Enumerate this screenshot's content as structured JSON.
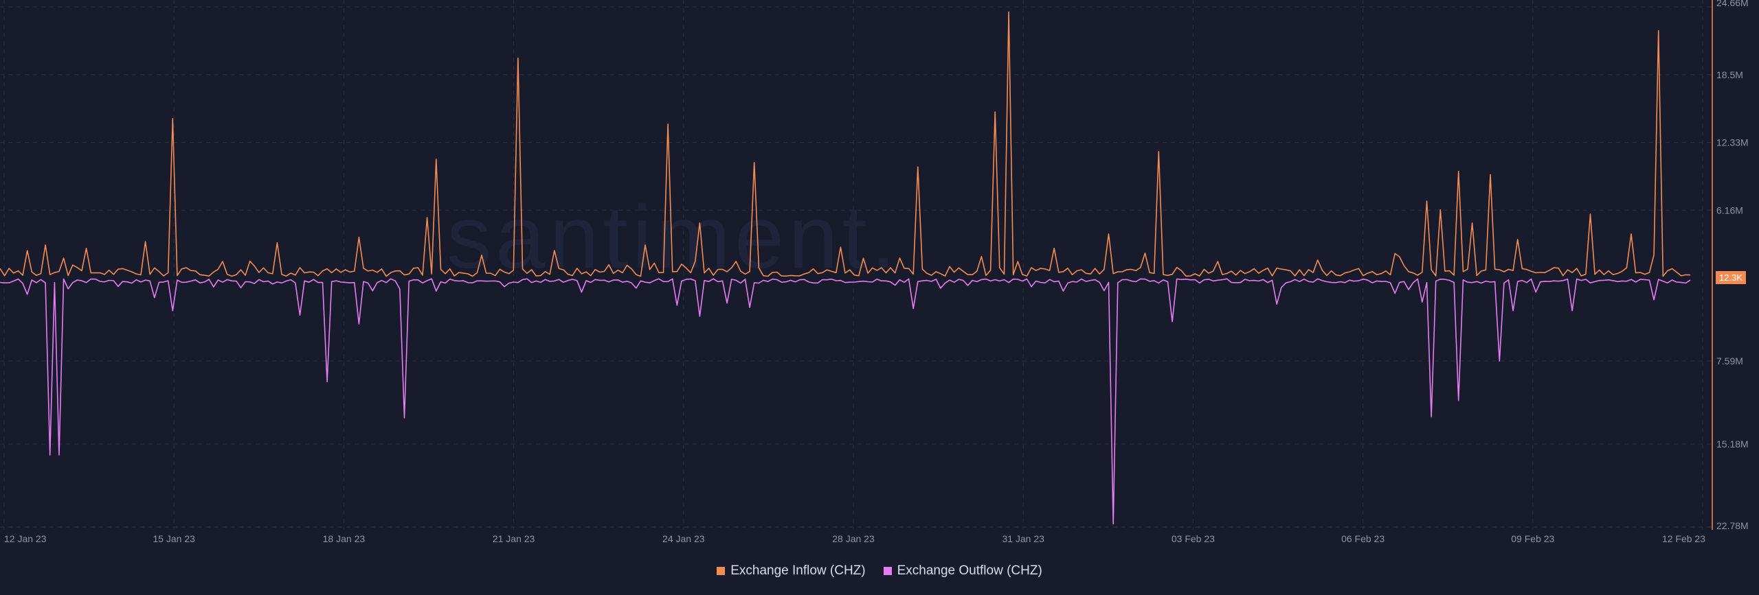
{
  "watermark": "santiment.",
  "current_value_badge": "12.3K",
  "colors": {
    "inflow": "#f48c52",
    "outflow": "#e67cf2",
    "background": "#181b2c",
    "badge": "#f48c52"
  },
  "legend": [
    {
      "label": "Exchange Inflow (CHZ)",
      "color": "#f48c52"
    },
    {
      "label": "Exchange Outflow (CHZ)",
      "color": "#e67cf2"
    }
  ],
  "chart_data": {
    "type": "line",
    "title": "",
    "xlabel": "",
    "ylabel": "",
    "x_ticks": [
      "12 Jan 23",
      "15 Jan 23",
      "18 Jan 23",
      "21 Jan 23",
      "24 Jan 23",
      "28 Jan 23",
      "31 Jan 23",
      "03 Feb 23",
      "06 Feb 23",
      "09 Feb 23",
      "12 Feb 23"
    ],
    "y_ticks_upper": [
      "24.66M",
      "18.5M",
      "12.33M",
      "6.16M"
    ],
    "y_ticks_lower": [
      "7.59M",
      "15.18M",
      "22.78M"
    ],
    "x_range": [
      "2023-01-12",
      "2023-02-12"
    ],
    "inflow_range": [
      0,
      24660000
    ],
    "outflow_range": [
      0,
      22780000
    ],
    "grid": true,
    "legend_position": "bottom-center",
    "series": [
      {
        "name": "Exchange Inflow (CHZ)",
        "color": "#f48c52",
        "baseline": 500000,
        "spikes": [
          {
            "t": "2023-01-12T12:00",
            "v": 2500000
          },
          {
            "t": "2023-01-12T20:00",
            "v": 3000000
          },
          {
            "t": "2023-01-13T04:00",
            "v": 1800000
          },
          {
            "t": "2023-01-13T14:00",
            "v": 2700000
          },
          {
            "t": "2023-01-14T16:00",
            "v": 3300000
          },
          {
            "t": "2023-01-15T04:00",
            "v": 14500000
          },
          {
            "t": "2023-01-16T02:00",
            "v": 1500000
          },
          {
            "t": "2023-01-17T02:00",
            "v": 3200000
          },
          {
            "t": "2023-01-18T14:00",
            "v": 3700000
          },
          {
            "t": "2023-01-19T03:00",
            "v": 1800000
          },
          {
            "t": "2023-01-19T20:00",
            "v": 5500000
          },
          {
            "t": "2023-01-20T00:00",
            "v": 10800000
          },
          {
            "t": "2023-01-21T12:00",
            "v": 20000000
          },
          {
            "t": "2023-01-22T04:00",
            "v": 2500000
          },
          {
            "t": "2023-01-23T04:00",
            "v": 1200000
          },
          {
            "t": "2023-01-23T20:00",
            "v": 3000000
          },
          {
            "t": "2023-01-24T06:00",
            "v": 14000000
          },
          {
            "t": "2023-01-24T20:00",
            "v": 5000000
          },
          {
            "t": "2023-01-25T20:00",
            "v": 10500000
          },
          {
            "t": "2023-01-27T10:00",
            "v": 2800000
          },
          {
            "t": "2023-01-28T20:00",
            "v": 10100000
          },
          {
            "t": "2023-01-30T06:00",
            "v": 15100000
          },
          {
            "t": "2023-01-30T12:00",
            "v": 24200000
          },
          {
            "t": "2023-01-31T08:00",
            "v": 2700000
          },
          {
            "t": "2023-02-01T08:00",
            "v": 4000000
          },
          {
            "t": "2023-02-02T06:00",
            "v": 11500000
          },
          {
            "t": "2023-02-03T08:00",
            "v": 1500000
          },
          {
            "t": "2023-02-07T04:00",
            "v": 7000000
          },
          {
            "t": "2023-02-07T10:00",
            "v": 6200000
          },
          {
            "t": "2023-02-07T18:00",
            "v": 9700000
          },
          {
            "t": "2023-02-08T00:00",
            "v": 5000000
          },
          {
            "t": "2023-02-08T08:00",
            "v": 9400000
          },
          {
            "t": "2023-02-08T20:00",
            "v": 3500000
          },
          {
            "t": "2023-02-10T04:00",
            "v": 5800000
          },
          {
            "t": "2023-02-10T22:00",
            "v": 4000000
          },
          {
            "t": "2023-02-11T10:00",
            "v": 22500000
          }
        ]
      },
      {
        "name": "Exchange Outflow (CHZ)",
        "color": "#e67cf2",
        "baseline": 250000,
        "spikes": [
          {
            "t": "2023-01-12T12:00",
            "v": 1500000
          },
          {
            "t": "2023-01-12T22:00",
            "v": 16200000
          },
          {
            "t": "2023-01-13T02:00",
            "v": 16200000
          },
          {
            "t": "2023-01-13T06:00",
            "v": 1000000
          },
          {
            "t": "2023-01-14T20:00",
            "v": 1800000
          },
          {
            "t": "2023-01-15T04:00",
            "v": 3000000
          },
          {
            "t": "2023-01-16T10:00",
            "v": 900000
          },
          {
            "t": "2023-01-17T12:00",
            "v": 3400000
          },
          {
            "t": "2023-01-18T00:00",
            "v": 9500000
          },
          {
            "t": "2023-01-18T14:00",
            "v": 4200000
          },
          {
            "t": "2023-01-19T10:00",
            "v": 12800000
          },
          {
            "t": "2023-01-20T00:00",
            "v": 1200000
          },
          {
            "t": "2023-01-21T06:00",
            "v": 800000
          },
          {
            "t": "2023-01-22T16:00",
            "v": 1300000
          },
          {
            "t": "2023-01-24T10:00",
            "v": 2500000
          },
          {
            "t": "2023-01-24T20:00",
            "v": 3500000
          },
          {
            "t": "2023-01-25T08:00",
            "v": 2300000
          },
          {
            "t": "2023-01-25T18:00",
            "v": 2700000
          },
          {
            "t": "2023-01-28T18:00",
            "v": 2800000
          },
          {
            "t": "2023-01-31T12:00",
            "v": 1200000
          },
          {
            "t": "2023-02-01T10:00",
            "v": 22500000
          },
          {
            "t": "2023-02-02T12:00",
            "v": 4000000
          },
          {
            "t": "2023-02-04T10:00",
            "v": 2400000
          },
          {
            "t": "2023-02-06T14:00",
            "v": 1400000
          },
          {
            "t": "2023-02-07T02:00",
            "v": 2200000
          },
          {
            "t": "2023-02-07T06:00",
            "v": 12700000
          },
          {
            "t": "2023-02-07T18:00",
            "v": 11200000
          },
          {
            "t": "2023-02-08T12:00",
            "v": 7600000
          },
          {
            "t": "2023-02-08T18:00",
            "v": 3000000
          },
          {
            "t": "2023-02-09T04:00",
            "v": 1300000
          },
          {
            "t": "2023-02-09T20:00",
            "v": 3000000
          },
          {
            "t": "2023-02-11T08:00",
            "v": 2000000
          }
        ]
      }
    ]
  }
}
